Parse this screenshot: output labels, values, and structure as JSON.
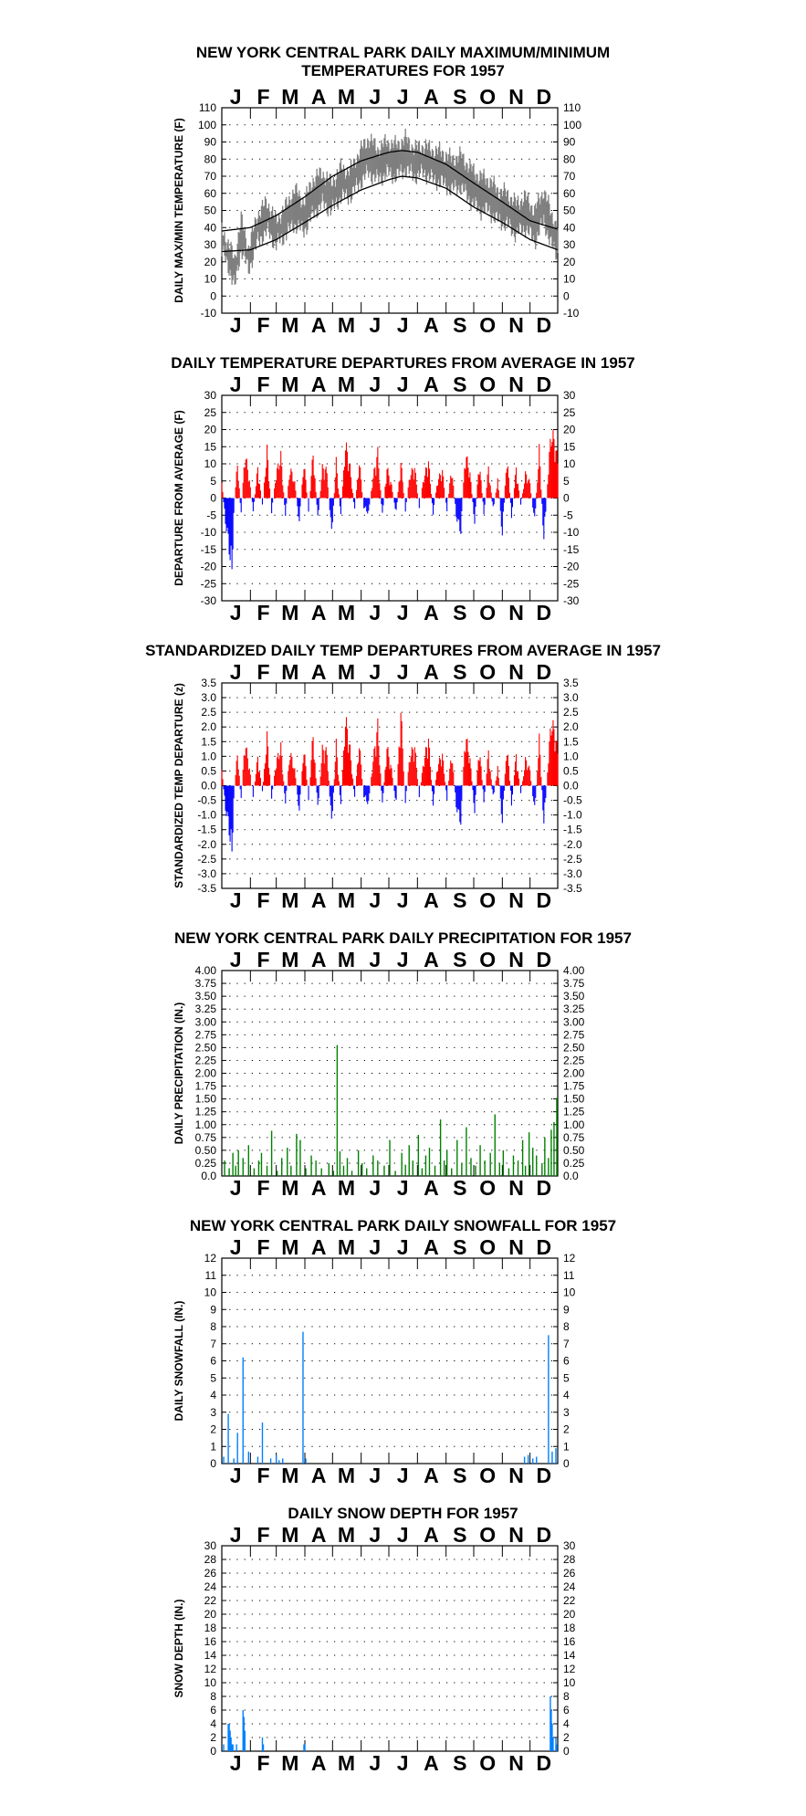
{
  "months": [
    "J",
    "F",
    "M",
    "A",
    "M",
    "J",
    "J",
    "A",
    "S",
    "O",
    "N",
    "D"
  ],
  "charts": [
    {
      "id": "temp",
      "title_line1": "NEW YORK CENTRAL PARK DAILY MAXIMUM/MINIMUM",
      "title_line2": "TEMPERATURES FOR 1957",
      "ylabel": "DAILY MAX/MIN TEMPERATURE (F)"
    },
    {
      "id": "dep",
      "title": "DAILY TEMPERATURE DEPARTURES FROM AVERAGE IN 1957",
      "ylabel": "DEPARTURE FROM AVERAGE (F)"
    },
    {
      "id": "std",
      "title": "STANDARDIZED DAILY TEMP DEPARTURES FROM AVERAGE IN 1957",
      "ylabel": "STANDARDIZED TEMP DEPARTURE (z)"
    },
    {
      "id": "prcp",
      "title": "NEW YORK CENTRAL PARK DAILY PRECIPITATION FOR 1957",
      "ylabel": "DAILY PRECIPITATION (IN.)"
    },
    {
      "id": "snow",
      "title": "NEW YORK CENTRAL PARK DAILY SNOWFALL FOR 1957",
      "ylabel": "DAILY SNOWFALL (IN.)"
    },
    {
      "id": "depth",
      "title": "DAILY SNOW DEPTH FOR 1957",
      "ylabel": "SNOW DEPTH (IN.)"
    }
  ],
  "chart_data": [
    {
      "type": "line",
      "ylim": [
        -10,
        110
      ],
      "yticks": [
        -10,
        0,
        10,
        20,
        30,
        40,
        50,
        60,
        70,
        80,
        90,
        100,
        110
      ],
      "tick_labels": [
        "-10",
        "0",
        "10",
        "20",
        "30",
        "40",
        "50",
        "60",
        "70",
        "80",
        "90",
        "100",
        "110"
      ],
      "normal_max": {
        "x": [
          1,
          32,
          60,
          91,
          121,
          152,
          182,
          196,
          213,
          244,
          274,
          305,
          335,
          365
        ],
        "y": [
          38,
          40,
          47,
          58,
          70,
          79,
          84,
          85,
          84,
          77,
          66,
          55,
          44,
          39
        ]
      },
      "normal_min": {
        "x": [
          1,
          32,
          60,
          91,
          121,
          152,
          182,
          196,
          213,
          244,
          274,
          305,
          335,
          365
        ],
        "y": [
          26,
          27,
          33,
          43,
          53,
          62,
          68,
          70,
          69,
          63,
          52,
          43,
          33,
          27
        ]
      },
      "daily_max_anchor": {
        "x": [
          1,
          8,
          15,
          22,
          30,
          40,
          50,
          60,
          70,
          80,
          90,
          100,
          110,
          120,
          130,
          140,
          150,
          160,
          170,
          180,
          190,
          200,
          210,
          220,
          230,
          240,
          250,
          260,
          270,
          280,
          290,
          300,
          310,
          320,
          330,
          340,
          350,
          358,
          365
        ],
        "y": [
          40,
          30,
          22,
          45,
          28,
          48,
          55,
          44,
          52,
          62,
          55,
          68,
          72,
          66,
          75,
          73,
          84,
          92,
          86,
          90,
          88,
          92,
          86,
          88,
          85,
          84,
          80,
          82,
          75,
          70,
          68,
          62,
          60,
          54,
          58,
          50,
          62,
          48,
          40
        ]
      },
      "daily_min_anchor": {
        "x": [
          1,
          8,
          15,
          22,
          30,
          40,
          50,
          60,
          70,
          80,
          90,
          100,
          110,
          120,
          130,
          140,
          150,
          160,
          170,
          180,
          190,
          200,
          210,
          220,
          230,
          240,
          250,
          260,
          270,
          280,
          290,
          300,
          310,
          320,
          330,
          340,
          350,
          358,
          365
        ],
        "y": [
          26,
          18,
          5,
          28,
          15,
          32,
          38,
          30,
          36,
          42,
          38,
          48,
          54,
          50,
          58,
          58,
          66,
          72,
          68,
          72,
          70,
          74,
          70,
          72,
          68,
          66,
          62,
          64,
          56,
          50,
          50,
          44,
          42,
          36,
          40,
          32,
          44,
          30,
          24
        ]
      },
      "grid": "dotted",
      "series": [
        {
          "name": "",
          "color": "#7f7f7f"
        },
        {
          "name": "",
          "color": "#000000"
        }
      ]
    },
    {
      "type": "bar",
      "ylim": [
        -30,
        30
      ],
      "yticks": [
        -30,
        -25,
        -20,
        -15,
        -10,
        -5,
        0,
        5,
        10,
        15,
        20,
        25,
        30
      ],
      "tick_labels": [
        "-30",
        "-25",
        "-20",
        "-15",
        "-10",
        "-5",
        "0",
        "5",
        "10",
        "15",
        "20",
        "25",
        "30"
      ],
      "anchor": {
        "x": [
          1,
          5,
          8,
          12,
          14,
          18,
          22,
          26,
          30,
          35,
          40,
          45,
          50,
          55,
          60,
          65,
          70,
          75,
          80,
          85,
          90,
          95,
          100,
          105,
          110,
          115,
          120,
          125,
          130,
          135,
          140,
          145,
          150,
          155,
          160,
          165,
          170,
          175,
          180,
          185,
          190,
          195,
          200,
          205,
          210,
          215,
          220,
          225,
          230,
          235,
          240,
          245,
          250,
          255,
          260,
          265,
          270,
          275,
          280,
          285,
          290,
          295,
          300,
          305,
          310,
          315,
          320,
          325,
          330,
          335,
          340,
          345,
          350,
          355,
          358,
          362,
          365
        ],
        "y": [
          5,
          -8,
          -14,
          -25,
          -5,
          12,
          -6,
          15,
          8,
          -4,
          10,
          -3,
          16,
          -5,
          8,
          14,
          -6,
          10,
          5,
          -8,
          12,
          -4,
          15,
          -7,
          10,
          9,
          -12,
          12,
          -6,
          18,
          10,
          -4,
          12,
          -3,
          -5,
          7,
          15,
          -6,
          10,
          4,
          -5,
          12,
          -4,
          8,
          10,
          -3,
          7,
          12,
          -5,
          6,
          9,
          -4,
          10,
          -6,
          -11,
          15,
          8,
          -8,
          12,
          -5,
          10,
          -4,
          6,
          -12,
          14,
          -6,
          10,
          -3,
          8,
          5,
          -8,
          16,
          -14,
          10,
          22,
          18,
          12
        ]
      },
      "grid": "dotted",
      "series": [
        {
          "name": "",
          "color": "#ff0000"
        },
        {
          "name": "",
          "color": "#0000ff"
        }
      ]
    },
    {
      "type": "bar",
      "ylim": [
        -3.5,
        3.5
      ],
      "yticks": [
        -3.5,
        -3.0,
        -2.5,
        -2.0,
        -1.5,
        -1.0,
        -0.5,
        0.0,
        0.5,
        1.0,
        1.5,
        2.0,
        2.5,
        3.0,
        3.5
      ],
      "tick_labels": [
        "-3.5",
        "-3.0",
        "-2.5",
        "-2.0",
        "-1.5",
        "-1.0",
        "-0.5",
        "0.0",
        "0.5",
        "1.0",
        "1.5",
        "2.0",
        "2.5",
        "3.0",
        "3.5"
      ],
      "anchor": {
        "x": [
          1,
          5,
          8,
          12,
          14,
          18,
          22,
          26,
          30,
          35,
          40,
          45,
          50,
          55,
          60,
          65,
          70,
          75,
          80,
          85,
          90,
          95,
          100,
          105,
          110,
          115,
          120,
          125,
          130,
          135,
          140,
          145,
          150,
          155,
          160,
          165,
          170,
          175,
          180,
          185,
          190,
          195,
          200,
          205,
          210,
          215,
          220,
          225,
          230,
          235,
          240,
          245,
          250,
          255,
          260,
          265,
          270,
          275,
          280,
          285,
          290,
          295,
          300,
          305,
          310,
          315,
          320,
          325,
          330,
          335,
          340,
          345,
          350,
          355,
          358,
          362,
          365
        ],
        "y": [
          0.6,
          -0.9,
          -1.4,
          -2.7,
          -0.5,
          1.3,
          -0.6,
          1.7,
          0.9,
          -0.4,
          1.1,
          -0.3,
          1.9,
          -0.5,
          0.9,
          1.5,
          -0.7,
          1.3,
          0.6,
          -1.0,
          1.5,
          -0.5,
          2.0,
          -0.9,
          1.4,
          1.3,
          -1.5,
          1.6,
          -0.8,
          2.6,
          1.4,
          -0.5,
          1.6,
          -0.4,
          -0.7,
          1.0,
          2.3,
          -0.8,
          1.5,
          0.6,
          -0.7,
          2.9,
          -0.6,
          1.2,
          1.5,
          -0.4,
          1.0,
          1.8,
          -0.7,
          0.8,
          1.2,
          -0.5,
          1.3,
          -0.8,
          -1.4,
          2.0,
          1.0,
          -1.0,
          1.5,
          -0.6,
          1.3,
          -0.5,
          0.7,
          -1.4,
          1.6,
          -0.7,
          1.2,
          -0.4,
          1.0,
          0.6,
          -1.0,
          1.8,
          -1.5,
          1.1,
          2.5,
          2.0,
          1.3
        ]
      },
      "grid": "dotted",
      "series": [
        {
          "name": "",
          "color": "#ff0000"
        },
        {
          "name": "",
          "color": "#0000ff"
        }
      ]
    },
    {
      "type": "bar",
      "ylim": [
        0,
        4
      ],
      "yticks": [
        0,
        0.25,
        0.5,
        0.75,
        1,
        1.25,
        1.5,
        1.75,
        2,
        2.25,
        2.5,
        2.75,
        3,
        3.25,
        3.5,
        3.75,
        4
      ],
      "tick_labels": [
        "0.0",
        "0.25",
        "0.50",
        "0.75",
        "1.00",
        "1.25",
        "1.50",
        "1.75",
        "2.00",
        "2.25",
        "2.50",
        "2.75",
        "3.00",
        "3.25",
        "3.50",
        "3.75",
        "4.00"
      ],
      "days": [
        4,
        9,
        13,
        16,
        19,
        24,
        30,
        36,
        41,
        44,
        50,
        55,
        61,
        66,
        72,
        76,
        82,
        86,
        92,
        98,
        103,
        109,
        117,
        122,
        126,
        129,
        133,
        137,
        142,
        149,
        153,
        158,
        165,
        170,
        177,
        183,
        189,
        196,
        200,
        204,
        208,
        214,
        218,
        222,
        226,
        232,
        238,
        242,
        245,
        250,
        256,
        261,
        266,
        271,
        276,
        281,
        286,
        292,
        297,
        302,
        306,
        312,
        317,
        322,
        327,
        330,
        334,
        338,
        342,
        348,
        351,
        355,
        358,
        361,
        364
      ],
      "values": [
        0.3,
        0.15,
        0.45,
        0.2,
        0.5,
        0.35,
        0.6,
        0.15,
        0.3,
        0.45,
        0.2,
        0.88,
        0.1,
        0.35,
        0.55,
        0.2,
        0.82,
        0.7,
        0.15,
        0.4,
        0.3,
        0.15,
        0.25,
        0.1,
        2.55,
        0.48,
        0.2,
        0.35,
        0.1,
        0.5,
        0.25,
        0.15,
        0.4,
        0.3,
        0.2,
        0.7,
        0.1,
        0.45,
        0.22,
        0.6,
        0.3,
        0.8,
        0.15,
        0.4,
        0.55,
        0.2,
        1.1,
        0.3,
        0.5,
        0.15,
        0.7,
        0.25,
        0.95,
        0.35,
        0.2,
        0.6,
        0.3,
        0.45,
        1.2,
        0.25,
        0.5,
        0.15,
        0.4,
        0.3,
        0.7,
        0.2,
        0.85,
        0.55,
        0.4,
        0.25,
        0.75,
        0.35,
        0.9,
        1.05,
        1.52
      ],
      "grid": "dotted",
      "series": [
        {
          "name": "",
          "color": "#008000"
        }
      ]
    },
    {
      "type": "bar",
      "ylim": [
        0,
        12
      ],
      "yticks": [
        0,
        1,
        2,
        3,
        4,
        5,
        6,
        7,
        8,
        9,
        10,
        11,
        12
      ],
      "tick_labels": [
        "0",
        "1",
        "2",
        "3",
        "4",
        "5",
        "6",
        "7",
        "8",
        "9",
        "10",
        "11",
        "12"
      ],
      "days": [
        3,
        8,
        14,
        18,
        24,
        30,
        40,
        45,
        54,
        60,
        63,
        67,
        89,
        92,
        329,
        333,
        338,
        342,
        355,
        359,
        363
      ],
      "values": [
        0.4,
        2.9,
        0.3,
        1.8,
        6.2,
        0.7,
        0.4,
        2.4,
        0.3,
        0.5,
        0.2,
        0.3,
        7.7,
        0.3,
        0.4,
        0.5,
        0.3,
        0.4,
        7.5,
        0.7,
        0.9
      ],
      "grid": "dotted",
      "series": [
        {
          "name": "",
          "color": "#0080ff"
        }
      ]
    },
    {
      "type": "bar",
      "ylim": [
        0,
        30
      ],
      "yticks": [
        0,
        2,
        4,
        6,
        8,
        10,
        12,
        14,
        16,
        18,
        20,
        22,
        24,
        26,
        28,
        30
      ],
      "tick_labels": [
        "0",
        "2",
        "4",
        "6",
        "8",
        "10",
        "12",
        "14",
        "16",
        "18",
        "20",
        "22",
        "24",
        "26",
        "28",
        "30"
      ],
      "days": [
        3,
        8,
        9,
        10,
        11,
        12,
        13,
        17,
        24,
        25,
        26,
        45,
        46,
        90,
        91,
        357,
        358,
        359,
        360,
        363,
        364
      ],
      "values": [
        1,
        4,
        4,
        3,
        2,
        1,
        1,
        1,
        6,
        5,
        3,
        2,
        1,
        1,
        1,
        8,
        6,
        4,
        2,
        2,
        1
      ],
      "grid": "dotted",
      "series": [
        {
          "name": "",
          "color": "#0080ff"
        }
      ]
    }
  ]
}
